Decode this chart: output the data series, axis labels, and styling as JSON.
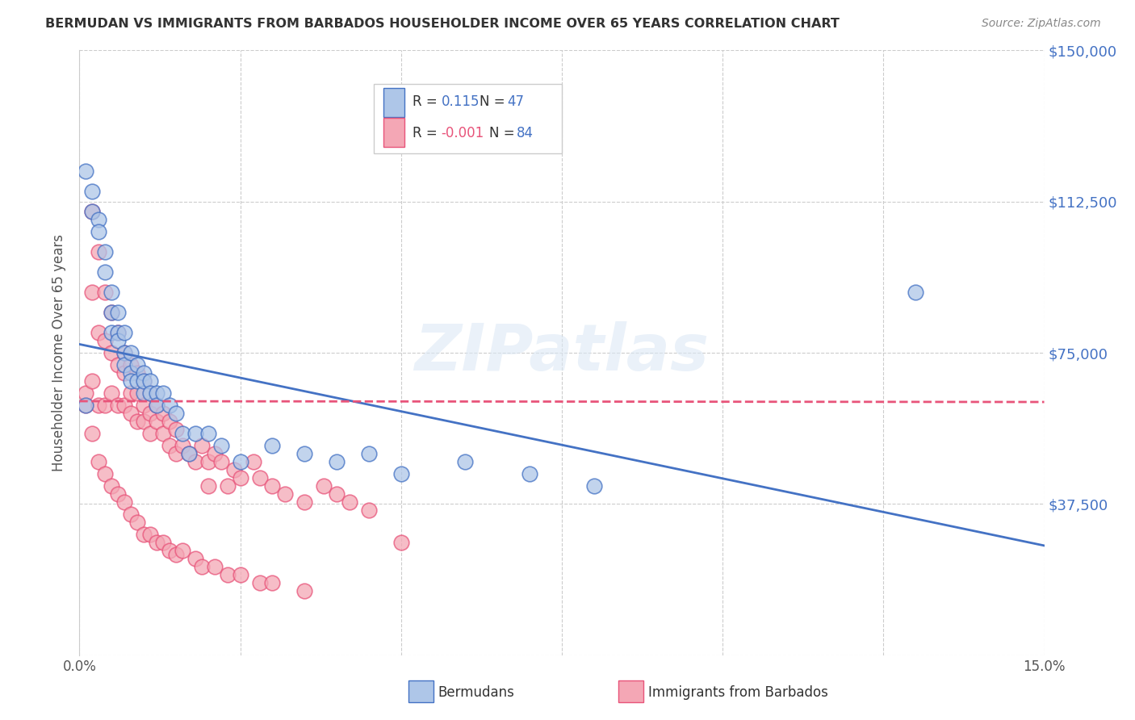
{
  "title": "BERMUDAN VS IMMIGRANTS FROM BARBADOS HOUSEHOLDER INCOME OVER 65 YEARS CORRELATION CHART",
  "source": "Source: ZipAtlas.com",
  "ylabel": "Householder Income Over 65 years",
  "x_min": 0.0,
  "x_max": 0.15,
  "y_min": 0,
  "y_max": 150000,
  "y_ticks": [
    0,
    37500,
    75000,
    112500,
    150000
  ],
  "y_tick_labels": [
    "",
    "$37,500",
    "$75,000",
    "$112,500",
    "$150,000"
  ],
  "x_ticks": [
    0.0,
    0.025,
    0.05,
    0.075,
    0.1,
    0.125,
    0.15
  ],
  "x_tick_labels": [
    "0.0%",
    "",
    "",
    "",
    "",
    "",
    "15.0%"
  ],
  "legend_R1": "0.115",
  "legend_N1": "47",
  "legend_R2": "-0.001",
  "legend_N2": "84",
  "color_blue": "#aec6e8",
  "color_blue_line": "#4472c4",
  "color_pink": "#f4a7b5",
  "color_pink_line": "#e8547a",
  "color_blue_dark": "#4472c4",
  "watermark": "ZIPatlas",
  "bermuda_x": [
    0.001,
    0.002,
    0.002,
    0.003,
    0.003,
    0.004,
    0.004,
    0.005,
    0.005,
    0.005,
    0.006,
    0.006,
    0.006,
    0.007,
    0.007,
    0.007,
    0.008,
    0.008,
    0.008,
    0.009,
    0.009,
    0.01,
    0.01,
    0.01,
    0.011,
    0.011,
    0.012,
    0.012,
    0.013,
    0.014,
    0.015,
    0.016,
    0.017,
    0.018,
    0.02,
    0.022,
    0.025,
    0.03,
    0.035,
    0.04,
    0.045,
    0.05,
    0.06,
    0.07,
    0.08,
    0.13,
    0.001
  ],
  "bermuda_y": [
    120000,
    115000,
    110000,
    108000,
    105000,
    100000,
    95000,
    90000,
    85000,
    80000,
    80000,
    85000,
    78000,
    75000,
    80000,
    72000,
    70000,
    75000,
    68000,
    72000,
    68000,
    70000,
    65000,
    68000,
    68000,
    65000,
    65000,
    62000,
    65000,
    62000,
    60000,
    55000,
    50000,
    55000,
    55000,
    52000,
    48000,
    52000,
    50000,
    48000,
    50000,
    45000,
    48000,
    45000,
    42000,
    90000,
    62000
  ],
  "barbados_x": [
    0.001,
    0.001,
    0.002,
    0.002,
    0.002,
    0.003,
    0.003,
    0.003,
    0.004,
    0.004,
    0.004,
    0.005,
    0.005,
    0.005,
    0.006,
    0.006,
    0.006,
    0.007,
    0.007,
    0.007,
    0.008,
    0.008,
    0.008,
    0.009,
    0.009,
    0.009,
    0.01,
    0.01,
    0.01,
    0.011,
    0.011,
    0.011,
    0.012,
    0.012,
    0.013,
    0.013,
    0.014,
    0.014,
    0.015,
    0.015,
    0.016,
    0.017,
    0.018,
    0.019,
    0.02,
    0.02,
    0.021,
    0.022,
    0.023,
    0.024,
    0.025,
    0.027,
    0.028,
    0.03,
    0.032,
    0.035,
    0.038,
    0.04,
    0.042,
    0.045,
    0.002,
    0.003,
    0.004,
    0.005,
    0.006,
    0.007,
    0.008,
    0.009,
    0.01,
    0.011,
    0.012,
    0.013,
    0.014,
    0.015,
    0.016,
    0.018,
    0.019,
    0.021,
    0.023,
    0.025,
    0.028,
    0.03,
    0.035,
    0.05
  ],
  "barbados_y": [
    62000,
    65000,
    110000,
    90000,
    68000,
    100000,
    80000,
    62000,
    90000,
    78000,
    62000,
    85000,
    75000,
    65000,
    80000,
    72000,
    62000,
    75000,
    70000,
    62000,
    72000,
    65000,
    60000,
    70000,
    65000,
    58000,
    68000,
    62000,
    58000,
    65000,
    60000,
    55000,
    62000,
    58000,
    60000,
    55000,
    58000,
    52000,
    56000,
    50000,
    52000,
    50000,
    48000,
    52000,
    48000,
    42000,
    50000,
    48000,
    42000,
    46000,
    44000,
    48000,
    44000,
    42000,
    40000,
    38000,
    42000,
    40000,
    38000,
    36000,
    55000,
    48000,
    45000,
    42000,
    40000,
    38000,
    35000,
    33000,
    30000,
    30000,
    28000,
    28000,
    26000,
    25000,
    26000,
    24000,
    22000,
    22000,
    20000,
    20000,
    18000,
    18000,
    16000,
    28000
  ]
}
